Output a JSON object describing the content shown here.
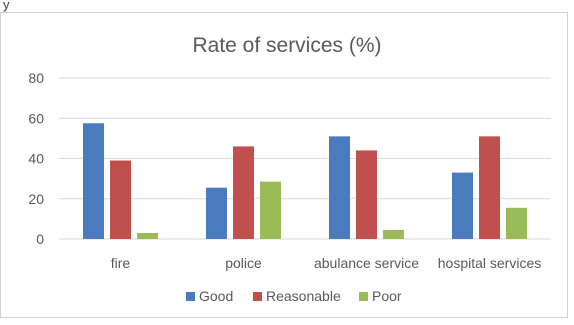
{
  "page_top_text": "y",
  "chart_data": {
    "type": "bar",
    "title": "Rate of services (%)",
    "xlabel": "",
    "ylabel": "",
    "ylim": [
      0,
      80
    ],
    "yticks": [
      0,
      20,
      40,
      60,
      80
    ],
    "grid": true,
    "legend_position": "bottom",
    "categories": [
      "fire",
      "police",
      "abulance service",
      "hospital services"
    ],
    "series": [
      {
        "name": "Good",
        "color": "#4a7bbf",
        "values": [
          57.5,
          25.5,
          51,
          33
        ]
      },
      {
        "name": "Reasonable",
        "color": "#c0504d",
        "values": [
          39,
          46,
          44,
          51
        ]
      },
      {
        "name": "Poor",
        "color": "#9bbb59",
        "values": [
          3,
          28.5,
          4.5,
          15.5
        ]
      }
    ]
  }
}
